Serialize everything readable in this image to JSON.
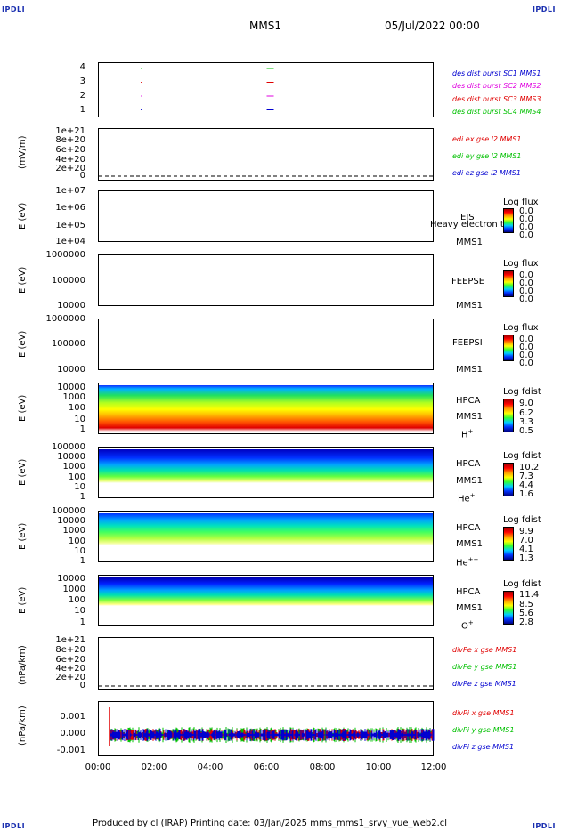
{
  "corners": {
    "tl": "IPDLI",
    "tr": "IPDLI",
    "bl": "IPDLI",
    "br": "IPDLI"
  },
  "header": {
    "title": "MMS1",
    "date": "05/Jul/2022 00:00"
  },
  "footer": {
    "text": "Produced by cl (IRAP)   Printing date: 03/Jan/2025   mms_mms1_srvy_vue_web2.cl"
  },
  "x_ticks": [
    "00:00",
    "02:00",
    "04:00",
    "06:00",
    "08:00",
    "10:00",
    "12:00"
  ],
  "colors": {
    "red": "#e00000",
    "green": "#00c000",
    "blue": "#0000d0",
    "magenta": "#e000e0"
  },
  "panels": {
    "p1": {
      "ticks": [
        "4",
        "3",
        "2",
        "1"
      ],
      "legend": [
        "des dist burst SC1 MMS1",
        "des dist burst SC2 MMS2",
        "des dist burst SC3 MMS3",
        "des dist burst SC4 MMS4"
      ]
    },
    "p2": {
      "ylabel": "(mV/m)",
      "ticks": [
        "1e+21",
        "8e+20",
        "6e+20",
        "4e+20",
        "2e+20",
        "0"
      ],
      "legend": [
        "edi ex gse l2 MMS1",
        "edi ey gse l2 MMS1",
        "edi ez gse l2 MMS1"
      ]
    },
    "p3": {
      "ylabel": "E (eV)",
      "ticks": [
        "1e+07",
        "1e+06",
        "1e+05",
        "1e+04"
      ],
      "label1": "EIS",
      "label2": "MMS1",
      "overlap": "Heavy electron to",
      "cb_title": "Log flux",
      "cb_vals": [
        "0.0",
        "0.0",
        "0.0",
        "0.0"
      ]
    },
    "p4": {
      "ylabel": "E (eV)",
      "ticks": [
        "1000000",
        "100000",
        "10000"
      ],
      "label1": "FEEPSE",
      "label2": "MMS1",
      "cb_title": "Log flux",
      "cb_vals": [
        "0.0",
        "0.0",
        "0.0",
        "0.0"
      ]
    },
    "p5": {
      "ylabel": "E (eV)",
      "ticks": [
        "1000000",
        "100000",
        "10000"
      ],
      "label1": "FEEPSI",
      "label2": "MMS1",
      "cb_title": "Log flux",
      "cb_vals": [
        "0.0",
        "0.0",
        "0.0",
        "0.0"
      ]
    },
    "p6": {
      "ylabel": "E (eV)",
      "ticks": [
        "10000",
        "1000",
        "100",
        "10",
        "1"
      ],
      "label1": "HPCA",
      "label2": "MMS1",
      "species": "H",
      "sup": "+",
      "cb_title": "Log fdist",
      "cb_vals": [
        "9.0",
        "6.2",
        "3.3",
        "0.5"
      ]
    },
    "p7": {
      "ylabel": "E (eV)",
      "ticks": [
        "100000",
        "10000",
        "1000",
        "100",
        "10",
        "1"
      ],
      "label1": "HPCA",
      "label2": "MMS1",
      "species": "He",
      "sup": "+",
      "cb_title": "Log fdist",
      "cb_vals": [
        "10.2",
        "7.3",
        "4.4",
        "1.6"
      ]
    },
    "p8": {
      "ylabel": "E (eV)",
      "ticks": [
        "100000",
        "10000",
        "1000",
        "100",
        "10",
        "1"
      ],
      "label1": "HPCA",
      "label2": "MMS1",
      "species": "He",
      "sup": "++",
      "cb_title": "Log fdist",
      "cb_vals": [
        "9.9",
        "7.0",
        "4.1",
        "1.3"
      ]
    },
    "p9": {
      "ylabel": "E (eV)",
      "ticks": [
        "10000",
        "1000",
        "100",
        "10",
        "1"
      ],
      "label1": "HPCA",
      "label2": "MMS1",
      "species": "O",
      "sup": "+",
      "cb_title": "Log fdist",
      "cb_vals": [
        "11.4",
        "8.5",
        "5.6",
        "2.8"
      ]
    },
    "p10": {
      "ylabel": "(nPa/km)",
      "ticks": [
        "1e+21",
        "8e+20",
        "6e+20",
        "4e+20",
        "2e+20",
        "0"
      ],
      "legend": [
        "divPe x gse MMS1",
        "divPe y gse MMS1",
        "divPe z gse MMS1"
      ]
    },
    "p11": {
      "ylabel": "(nPa/km)",
      "ticks": [
        "0.001",
        "0.000",
        "-0.001"
      ],
      "legend": [
        "divPi x gse MMS1",
        "divPi y gse MMS1",
        "divPi z gse MMS1"
      ]
    }
  },
  "chart_data": {
    "type": "line",
    "title": "MMS1",
    "xlim": [
      "00:00",
      "12:00"
    ],
    "burst_intervals": [
      {
        "series": "des dist burst SC1 MMS1",
        "level": 1,
        "starts": [
          "01:30",
          "06:00"
        ]
      },
      {
        "series": "des dist burst SC2 MMS2",
        "level": 2,
        "starts": [
          "01:30",
          "06:00"
        ]
      },
      {
        "series": "des dist burst SC3 MMS3",
        "level": 3,
        "starts": [
          "01:30",
          "06:00"
        ]
      },
      {
        "series": "des dist burst SC4 MMS4",
        "level": 4,
        "starts": [
          "01:30",
          "06:00"
        ]
      }
    ],
    "divPi_ylim": [
      -0.0012,
      0.0012
    ]
  }
}
